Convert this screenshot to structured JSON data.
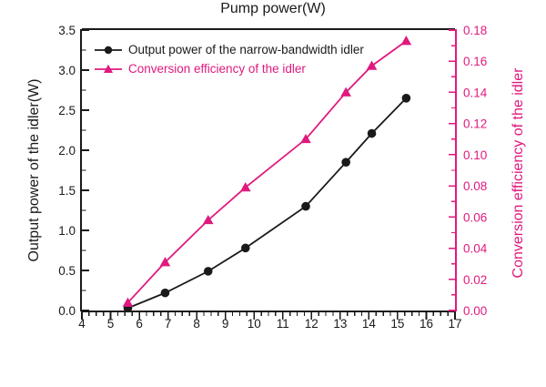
{
  "chart_data": {
    "type": "line",
    "x": [
      5.6,
      6.9,
      8.4,
      9.7,
      11.8,
      13.2,
      14.1,
      15.3
    ],
    "series": [
      {
        "name": "Output power of the narrow-bandwidth idler",
        "axis": "left",
        "color": "#1a1a1a",
        "marker": "circle",
        "values": [
          0.03,
          0.22,
          0.49,
          0.78,
          1.3,
          1.85,
          2.21,
          2.65
        ]
      },
      {
        "name": "Conversion efficiency of the idler",
        "axis": "right",
        "color": "#e0197e",
        "marker": "triangle",
        "values": [
          0.005,
          0.031,
          0.058,
          0.079,
          0.11,
          0.14,
          0.157,
          0.173
        ]
      }
    ],
    "xlabel": "Pump power(W)",
    "ylabel_left": "Output power of the idler(W)",
    "ylabel_right": "Conversion efficiency of the idler",
    "xlim": [
      4,
      17
    ],
    "ylim_left": [
      0,
      3.5
    ],
    "ylim_right": [
      0,
      0.18
    ],
    "x_ticks": [
      4,
      5,
      6,
      7,
      8,
      9,
      10,
      11,
      12,
      13,
      14,
      15,
      16,
      17
    ],
    "x_minor_step": 0.25,
    "y_left_ticks": [
      "0.0",
      "0.5",
      "1.0",
      "1.5",
      "2.0",
      "2.5",
      "3.0",
      "3.5"
    ],
    "y_left_minor_step": 0.25,
    "y_right_ticks": [
      "0.00",
      "0.02",
      "0.04",
      "0.06",
      "0.08",
      "0.10",
      "0.12",
      "0.14",
      "0.16",
      "0.18"
    ],
    "y_right_minor_step": 0.01,
    "grid": false,
    "legend_position": "top-left-inside",
    "colors": {
      "left_axis": "#1a1a1a",
      "right_axis": "#e0197e",
      "background": "#ffffff"
    }
  }
}
